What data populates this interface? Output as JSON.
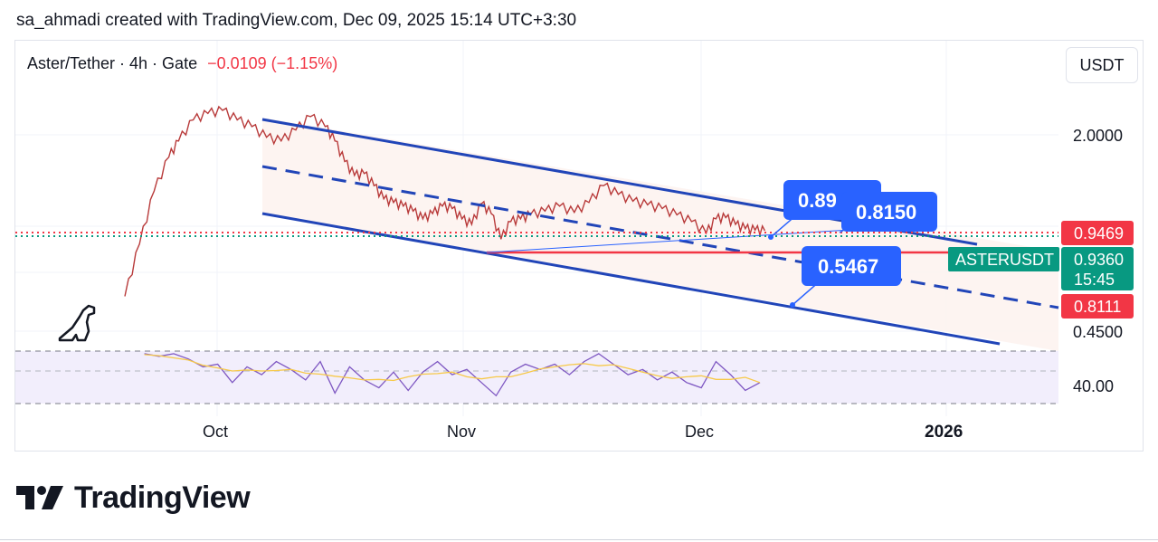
{
  "attribution": "sa_ahmadi created with TradingView.com, Dec 09, 2025 15:14 UTC+3:30",
  "legend": {
    "symbol": "Aster/Tether · 4h · Gate",
    "change": "−0.0109 (−1.15%)"
  },
  "unit_button": "USDT",
  "brand": {
    "name": "TradingView"
  },
  "chart_data": {
    "type": "line",
    "series_name": "ASTERUSDT",
    "price_axis": {
      "tick_labels": [
        "2.0000",
        "0.4500"
      ],
      "scale": "log"
    },
    "price_tags": [
      {
        "label": "0.9469",
        "color": "#f23645"
      },
      {
        "label": "ASTERUSDT",
        "color": "#089981"
      },
      {
        "label": "0.9360",
        "color": "#089981"
      },
      {
        "label": "15:45",
        "color": "#089981"
      },
      {
        "label": "0.8111",
        "color": "#f23645"
      }
    ],
    "time_axis": [
      "Oct",
      "Nov",
      "Dec",
      "2026"
    ],
    "annotations": [
      "0.89",
      "0.8150",
      "0.5467"
    ],
    "oscillator": {
      "label": "40.00",
      "line_color": "#7e57c2",
      "signal_color": "#f7c948"
    },
    "price_path": [
      [
        0.0,
        0.58
      ],
      [
        0.3,
        0.85
      ],
      [
        0.6,
        1.25
      ],
      [
        0.9,
        1.6
      ],
      [
        1.1,
        1.8
      ],
      [
        1.4,
        2.1
      ],
      [
        1.7,
        2.2
      ],
      [
        2.0,
        2.25
      ],
      [
        2.3,
        2.1
      ],
      [
        2.6,
        2.0
      ],
      [
        2.9,
        1.85
      ],
      [
        3.2,
        1.8
      ],
      [
        3.5,
        1.95
      ],
      [
        3.8,
        2.15
      ],
      [
        4.1,
        2.0
      ],
      [
        4.3,
        1.8
      ],
      [
        4.5,
        1.55
      ],
      [
        4.7,
        1.4
      ],
      [
        4.9,
        1.42
      ],
      [
        5.1,
        1.3
      ],
      [
        5.3,
        1.18
      ],
      [
        5.5,
        1.15
      ],
      [
        5.7,
        1.12
      ],
      [
        5.9,
        1.08
      ],
      [
        6.1,
        1.02
      ],
      [
        6.3,
        1.06
      ],
      [
        6.5,
        1.12
      ],
      [
        6.7,
        1.1
      ],
      [
        6.9,
        1.02
      ],
      [
        7.1,
        0.98
      ],
      [
        7.3,
        1.14
      ],
      [
        7.5,
        1.06
      ],
      [
        7.7,
        0.88
      ],
      [
        7.9,
        1.0
      ],
      [
        8.1,
        1.02
      ],
      [
        8.3,
        1.05
      ],
      [
        8.6,
        1.08
      ],
      [
        8.9,
        1.12
      ],
      [
        9.2,
        1.07
      ],
      [
        9.5,
        1.15
      ],
      [
        9.8,
        1.3
      ],
      [
        10.1,
        1.22
      ],
      [
        10.4,
        1.16
      ],
      [
        10.7,
        1.13
      ],
      [
        11.0,
        1.1
      ],
      [
        11.3,
        1.05
      ],
      [
        11.6,
        1.0
      ],
      [
        11.9,
        0.92
      ],
      [
        12.1,
        1.02
      ],
      [
        12.3,
        1.03
      ],
      [
        12.5,
        0.98
      ],
      [
        12.7,
        0.95
      ],
      [
        12.9,
        0.94
      ],
      [
        13.1,
        0.936
      ]
    ],
    "rsi_path": [
      [
        0.4,
        0.05
      ],
      [
        0.7,
        0.1
      ],
      [
        1.0,
        0.05
      ],
      [
        1.3,
        0.15
      ],
      [
        1.6,
        0.3
      ],
      [
        1.9,
        0.25
      ],
      [
        2.2,
        0.6
      ],
      [
        2.5,
        0.3
      ],
      [
        2.8,
        0.45
      ],
      [
        3.1,
        0.2
      ],
      [
        3.4,
        0.35
      ],
      [
        3.7,
        0.55
      ],
      [
        4.0,
        0.2
      ],
      [
        4.3,
        0.8
      ],
      [
        4.6,
        0.3
      ],
      [
        4.9,
        0.55
      ],
      [
        5.2,
        0.7
      ],
      [
        5.5,
        0.4
      ],
      [
        5.8,
        0.75
      ],
      [
        6.1,
        0.4
      ],
      [
        6.4,
        0.2
      ],
      [
        6.7,
        0.45
      ],
      [
        7.0,
        0.35
      ],
      [
        7.3,
        0.6
      ],
      [
        7.6,
        0.85
      ],
      [
        7.9,
        0.4
      ],
      [
        8.2,
        0.25
      ],
      [
        8.5,
        0.35
      ],
      [
        8.8,
        0.25
      ],
      [
        9.1,
        0.45
      ],
      [
        9.4,
        0.2
      ],
      [
        9.7,
        0.05
      ],
      [
        10.0,
        0.25
      ],
      [
        10.3,
        0.45
      ],
      [
        10.6,
        0.35
      ],
      [
        10.9,
        0.55
      ],
      [
        11.2,
        0.4
      ],
      [
        11.5,
        0.6
      ],
      [
        11.8,
        0.7
      ],
      [
        12.1,
        0.2
      ],
      [
        12.4,
        0.45
      ],
      [
        12.7,
        0.75
      ],
      [
        13.0,
        0.6
      ]
    ]
  }
}
